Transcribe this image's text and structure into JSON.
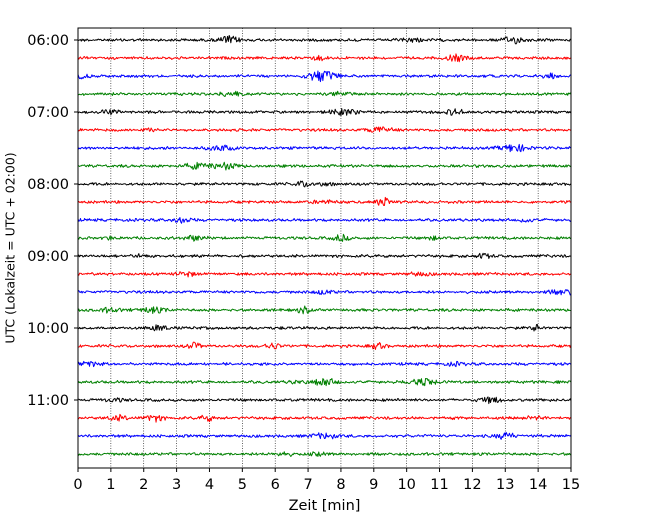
{
  "chart_data": {
    "type": "line",
    "title": "",
    "xlabel": "Zeit  [min]",
    "ylabel": "UTC (Lokalzeit = UTC + 02:00)",
    "xlim": [
      0,
      15
    ],
    "x_ticks": [
      "0",
      "1",
      "2",
      "3",
      "4",
      "5",
      "6",
      "7",
      "8",
      "9",
      "10",
      "11",
      "12",
      "13",
      "14",
      "15"
    ],
    "y_ticks": [
      "06:00",
      "07:00",
      "08:00",
      "09:00",
      "10:00",
      "11:00"
    ],
    "grid": "vertical dotted",
    "trace_interval_minutes": 15,
    "series": [
      {
        "start": "06:00",
        "color": "#000000"
      },
      {
        "start": "06:15",
        "color": "#ff0000"
      },
      {
        "start": "06:30",
        "color": "#0000ff"
      },
      {
        "start": "06:45",
        "color": "#008000"
      },
      {
        "start": "07:00",
        "color": "#000000"
      },
      {
        "start": "07:15",
        "color": "#ff0000"
      },
      {
        "start": "07:30",
        "color": "#0000ff"
      },
      {
        "start": "07:45",
        "color": "#008000"
      },
      {
        "start": "08:00",
        "color": "#000000"
      },
      {
        "start": "08:15",
        "color": "#ff0000"
      },
      {
        "start": "08:30",
        "color": "#0000ff"
      },
      {
        "start": "08:45",
        "color": "#008000"
      },
      {
        "start": "09:00",
        "color": "#000000"
      },
      {
        "start": "09:15",
        "color": "#ff0000"
      },
      {
        "start": "09:30",
        "color": "#0000ff"
      },
      {
        "start": "09:45",
        "color": "#008000"
      },
      {
        "start": "10:00",
        "color": "#000000"
      },
      {
        "start": "10:15",
        "color": "#ff0000"
      },
      {
        "start": "10:30",
        "color": "#0000ff"
      },
      {
        "start": "10:45",
        "color": "#008000"
      },
      {
        "start": "11:00",
        "color": "#000000"
      },
      {
        "start": "11:15",
        "color": "#ff0000"
      },
      {
        "start": "11:30",
        "color": "#0000ff"
      },
      {
        "start": "11:45",
        "color": "#008000"
      }
    ]
  }
}
